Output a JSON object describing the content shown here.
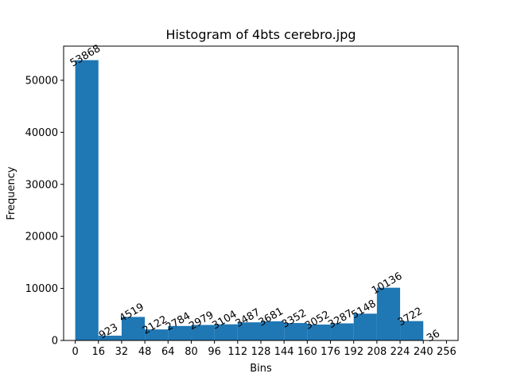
{
  "chart_data": {
    "type": "bar",
    "title": "Histogram of 4bts cerebro.jpg",
    "xlabel": "Bins",
    "ylabel": "Frequency",
    "bin_edges": [
      0,
      16,
      32,
      48,
      64,
      80,
      96,
      112,
      128,
      144,
      160,
      176,
      192,
      208,
      224,
      240,
      256
    ],
    "values": [
      53868,
      923,
      4519,
      2122,
      2784,
      2979,
      3104,
      3487,
      3681,
      3352,
      3052,
      3287,
      5148,
      10136,
      3722,
      36
    ],
    "xticks": [
      "0",
      "16",
      "32",
      "48",
      "64",
      "80",
      "96",
      "112",
      "128",
      "144",
      "160",
      "176",
      "192",
      "208",
      "224",
      "240",
      "256"
    ],
    "yticks": [
      "0",
      "10000",
      "20000",
      "30000",
      "40000",
      "50000"
    ],
    "xlim": [
      -8,
      264
    ],
    "ylim": [
      0,
      56560
    ],
    "grid": false,
    "legend": "none",
    "bar_color": "#1f77b4",
    "value_labels_rotation": 30
  }
}
